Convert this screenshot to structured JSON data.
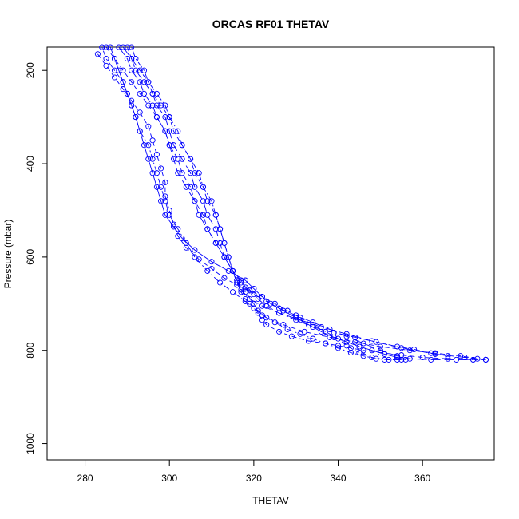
{
  "chart_data": {
    "type": "scatter",
    "title": "ORCAS RF01 THETAV",
    "xlabel": "THETAV",
    "ylabel": "Pressure (mbar)",
    "xlim": [
      271,
      377
    ],
    "ylim": [
      1035,
      150
    ],
    "y_reversed": true,
    "grid": false,
    "legend": "none",
    "x_ticks": [
      280,
      300,
      320,
      340,
      360
    ],
    "y_ticks": [
      200,
      400,
      600,
      800,
      1000
    ],
    "color": "#0000ff",
    "marker": "open-circle",
    "series": [
      {
        "line": "dashed",
        "points": [
          [
            285,
            150
          ],
          [
            287,
            175
          ],
          [
            289,
            200
          ],
          [
            291,
            225
          ],
          [
            293,
            250
          ],
          [
            295,
            275
          ],
          [
            297,
            300
          ],
          [
            299,
            330
          ],
          [
            300,
            360
          ],
          [
            302,
            390
          ],
          [
            303,
            420
          ],
          [
            305,
            450
          ],
          [
            306,
            480
          ],
          [
            308,
            510
          ],
          [
            309,
            540
          ],
          [
            311,
            570
          ],
          [
            313,
            600
          ],
          [
            315,
            630
          ],
          [
            316,
            655
          ],
          [
            318,
            675
          ],
          [
            320,
            700
          ],
          [
            321,
            720
          ],
          [
            322,
            735
          ],
          [
            323,
            745
          ],
          [
            326,
            760
          ],
          [
            329,
            770
          ],
          [
            333,
            780
          ],
          [
            337,
            785
          ],
          [
            340,
            790
          ],
          [
            343,
            795
          ],
          [
            346,
            800
          ],
          [
            350,
            805
          ],
          [
            355,
            810
          ],
          [
            360,
            815
          ],
          [
            366,
            818
          ],
          [
            372,
            820
          ],
          [
            375,
            820
          ]
        ]
      },
      {
        "line": "longdash",
        "points": [
          [
            289,
            150
          ],
          [
            291,
            175
          ],
          [
            292,
            200
          ],
          [
            294,
            225
          ],
          [
            296,
            250
          ],
          [
            297,
            275
          ],
          [
            299,
            300
          ],
          [
            300,
            330
          ],
          [
            301,
            360
          ],
          [
            303,
            390
          ],
          [
            305,
            420
          ],
          [
            306,
            450
          ],
          [
            308,
            480
          ],
          [
            309,
            510
          ],
          [
            311,
            540
          ],
          [
            312,
            570
          ],
          [
            313,
            600
          ],
          [
            315,
            630
          ],
          [
            316,
            650
          ],
          [
            317,
            670
          ],
          [
            319,
            690
          ],
          [
            322,
            705
          ],
          [
            326,
            720
          ],
          [
            331,
            735
          ],
          [
            336,
            750
          ],
          [
            342,
            765
          ],
          [
            348,
            780
          ],
          [
            355,
            795
          ],
          [
            363,
            808
          ],
          [
            370,
            815
          ],
          [
            375,
            820
          ]
        ]
      },
      {
        "line": "dotdash",
        "points": [
          [
            291,
            150
          ],
          [
            292,
            175
          ],
          [
            294,
            200
          ],
          [
            295,
            225
          ],
          [
            297,
            250
          ],
          [
            299,
            275
          ],
          [
            300,
            300
          ],
          [
            302,
            330
          ],
          [
            303,
            360
          ],
          [
            305,
            390
          ],
          [
            307,
            420
          ],
          [
            308,
            450
          ],
          [
            310,
            480
          ],
          [
            311,
            510
          ],
          [
            312,
            540
          ],
          [
            313,
            570
          ],
          [
            314,
            600
          ],
          [
            315,
            630
          ],
          [
            317,
            655
          ],
          [
            319,
            670
          ],
          [
            321,
            690
          ],
          [
            323,
            705
          ],
          [
            326,
            720
          ],
          [
            330,
            735
          ],
          [
            334,
            750
          ],
          [
            339,
            762
          ],
          [
            344,
            772
          ],
          [
            349,
            782
          ],
          [
            354,
            792
          ],
          [
            358,
            798
          ],
          [
            362,
            806
          ],
          [
            366,
            812
          ]
        ]
      },
      {
        "line": "dashed",
        "points": [
          [
            290,
            150
          ],
          [
            291,
            175
          ],
          [
            293,
            200
          ],
          [
            295,
            225
          ],
          [
            296,
            250
          ],
          [
            298,
            275
          ],
          [
            300,
            300
          ],
          [
            301,
            330
          ],
          [
            303,
            360
          ],
          [
            305,
            390
          ],
          [
            306,
            420
          ],
          [
            308,
            450
          ],
          [
            309,
            480
          ],
          [
            311,
            510
          ],
          [
            312,
            540
          ],
          [
            313,
            570
          ],
          [
            314,
            600
          ],
          [
            315,
            630
          ],
          [
            316,
            655
          ],
          [
            317,
            675
          ],
          [
            318,
            690
          ],
          [
            319,
            700
          ],
          [
            321,
            715
          ],
          [
            323,
            730
          ],
          [
            327,
            745
          ],
          [
            332,
            760
          ],
          [
            338,
            772
          ],
          [
            344,
            782
          ],
          [
            350,
            792
          ],
          [
            357,
            800
          ],
          [
            363,
            806
          ],
          [
            369,
            812
          ],
          [
            373,
            818
          ],
          [
            375,
            820
          ]
        ]
      },
      {
        "line": "longdash",
        "points": [
          [
            288,
            150
          ],
          [
            290,
            175
          ],
          [
            291,
            200
          ],
          [
            293,
            225
          ],
          [
            294,
            250
          ],
          [
            296,
            275
          ],
          [
            297,
            300
          ],
          [
            299,
            330
          ],
          [
            300,
            360
          ],
          [
            301,
            390
          ],
          [
            302,
            420
          ],
          [
            304,
            450
          ],
          [
            306,
            480
          ],
          [
            307,
            510
          ],
          [
            309,
            540
          ],
          [
            311,
            570
          ],
          [
            313,
            600
          ],
          [
            315,
            630
          ],
          [
            317,
            650
          ],
          [
            318,
            665
          ],
          [
            320,
            680
          ],
          [
            323,
            695
          ],
          [
            326,
            710
          ],
          [
            330,
            725
          ],
          [
            334,
            740
          ],
          [
            338,
            755
          ],
          [
            342,
            770
          ],
          [
            346,
            785
          ],
          [
            350,
            800
          ],
          [
            354,
            812
          ],
          [
            357,
            818
          ],
          [
            362,
            820
          ],
          [
            368,
            820
          ],
          [
            372,
            820
          ]
        ]
      },
      {
        "line": "dotdash",
        "points": [
          [
            284,
            150
          ],
          [
            285,
            175
          ],
          [
            287,
            200
          ],
          [
            289,
            225
          ],
          [
            290,
            250
          ],
          [
            291,
            275
          ],
          [
            292,
            300
          ],
          [
            293,
            330
          ],
          [
            295,
            360
          ],
          [
            296,
            390
          ],
          [
            297,
            420
          ],
          [
            298,
            450
          ],
          [
            299,
            480
          ],
          [
            300,
            510
          ],
          [
            302,
            540
          ],
          [
            304,
            570
          ],
          [
            306,
            600
          ],
          [
            309,
            630
          ],
          [
            312,
            655
          ],
          [
            315,
            675
          ],
          [
            318,
            695
          ],
          [
            320,
            710
          ],
          [
            322,
            725
          ],
          [
            325,
            740
          ],
          [
            328,
            755
          ],
          [
            331,
            765
          ],
          [
            334,
            775
          ],
          [
            337,
            785
          ],
          [
            340,
            795
          ],
          [
            343,
            805
          ],
          [
            346,
            812
          ],
          [
            349,
            818
          ],
          [
            352,
            820
          ],
          [
            355,
            820
          ]
        ]
      },
      {
        "line": "dashed",
        "points": [
          [
            283,
            165
          ],
          [
            285,
            190
          ],
          [
            287,
            215
          ],
          [
            289,
            240
          ],
          [
            291,
            265
          ],
          [
            293,
            290
          ],
          [
            295,
            320
          ],
          [
            296,
            350
          ],
          [
            297,
            380
          ],
          [
            298,
            410
          ],
          [
            299,
            440
          ],
          [
            299,
            470
          ],
          [
            300,
            500
          ],
          [
            301,
            530
          ],
          [
            302,
            555
          ],
          [
            304,
            580
          ],
          [
            307,
            605
          ],
          [
            310,
            625
          ],
          [
            313,
            645
          ],
          [
            316,
            660
          ],
          [
            319,
            672
          ],
          [
            322,
            685
          ],
          [
            325,
            700
          ],
          [
            328,
            715
          ],
          [
            331,
            730
          ],
          [
            334,
            745
          ],
          [
            337,
            760
          ],
          [
            340,
            775
          ],
          [
            342,
            790
          ],
          [
            345,
            805
          ],
          [
            348,
            815
          ],
          [
            351,
            820
          ],
          [
            354,
            820
          ]
        ]
      },
      {
        "line": "solid",
        "points": [
          [
            286,
            150
          ],
          [
            287,
            175
          ],
          [
            288,
            200
          ],
          [
            289,
            225
          ],
          [
            290,
            250
          ],
          [
            291,
            275
          ],
          [
            292,
            300
          ],
          [
            293,
            330
          ],
          [
            294,
            360
          ],
          [
            295,
            390
          ],
          [
            296,
            420
          ],
          [
            297,
            450
          ],
          [
            298,
            480
          ],
          [
            299,
            510
          ],
          [
            301,
            535
          ],
          [
            303,
            560
          ],
          [
            306,
            585
          ],
          [
            310,
            610
          ],
          [
            314,
            630
          ],
          [
            318,
            650
          ],
          [
            320,
            668
          ],
          [
            322,
            685
          ],
          [
            324,
            700
          ],
          [
            327,
            715
          ],
          [
            330,
            730
          ],
          [
            333,
            745
          ],
          [
            336,
            760
          ],
          [
            339,
            772
          ],
          [
            342,
            782
          ],
          [
            345,
            792
          ],
          [
            348,
            800
          ],
          [
            351,
            808
          ],
          [
            354,
            815
          ],
          [
            356,
            820
          ]
        ]
      }
    ]
  }
}
